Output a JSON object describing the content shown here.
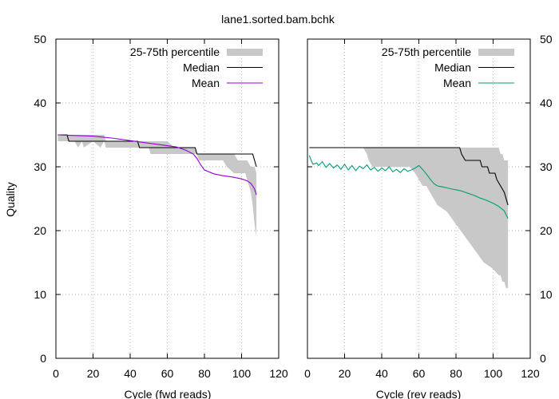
{
  "chart_data": [
    {
      "type": "line",
      "title": "lane1.sorted.bam.bchk",
      "xlabel": "Cycle (fwd reads)",
      "ylabel": "Quality",
      "xlim": [
        0,
        120
      ],
      "ylim": [
        0,
        50
      ],
      "xticks": [
        0,
        20,
        40,
        60,
        80,
        100,
        120
      ],
      "yticks": [
        0,
        10,
        20,
        30,
        40,
        50
      ],
      "grid": true,
      "legend_position": "top-right",
      "series": [
        {
          "name": "25-75th percentile",
          "kind": "band",
          "color": "#c8c8c8",
          "points": [
            [
              1,
              34,
              35
            ],
            [
              5,
              34,
              35
            ],
            [
              10,
              34,
              35
            ],
            [
              12,
              33,
              35
            ],
            [
              14,
              34,
              35
            ],
            [
              15,
              33,
              35
            ],
            [
              20,
              34,
              35
            ],
            [
              24,
              33,
              35
            ],
            [
              26,
              34,
              35
            ],
            [
              27,
              33,
              34
            ],
            [
              30,
              33,
              34
            ],
            [
              40,
              33,
              34
            ],
            [
              45,
              33,
              34
            ],
            [
              50,
              33,
              34
            ],
            [
              51,
              32,
              34
            ],
            [
              60,
              32,
              34
            ],
            [
              64,
              32,
              33
            ],
            [
              70,
              32,
              33
            ],
            [
              75,
              32,
              33
            ],
            [
              76,
              32,
              32
            ],
            [
              77,
              31,
              32
            ],
            [
              80,
              31,
              32
            ],
            [
              85,
              31,
              32
            ],
            [
              90,
              31,
              32
            ],
            [
              92,
              30,
              32
            ],
            [
              96,
              29,
              32
            ],
            [
              98,
              29,
              31
            ],
            [
              100,
              29,
              31
            ],
            [
              102,
              29,
              31
            ],
            [
              103,
              28,
              31
            ],
            [
              105,
              26,
              30
            ],
            [
              106,
              24,
              30
            ],
            [
              107,
              21,
              30
            ],
            [
              108,
              19,
              29
            ]
          ]
        },
        {
          "name": "Median",
          "color": "#000000",
          "points": [
            [
              1,
              35
            ],
            [
              6,
              35
            ],
            [
              7,
              34
            ],
            [
              44,
              34
            ],
            [
              45,
              33
            ],
            [
              75,
              33
            ],
            [
              76,
              32
            ],
            [
              106,
              32
            ],
            [
              107,
              31
            ],
            [
              108,
              30
            ]
          ]
        },
        {
          "name": "Mean",
          "color": "#9400d3",
          "points": [
            [
              1,
              35.0
            ],
            [
              10,
              34.9
            ],
            [
              20,
              34.8
            ],
            [
              30,
              34.5
            ],
            [
              40,
              34.1
            ],
            [
              50,
              33.7
            ],
            [
              60,
              33.3
            ],
            [
              65,
              33.1
            ],
            [
              70,
              32.6
            ],
            [
              74,
              32.0
            ],
            [
              76,
              31.3
            ],
            [
              78,
              30.3
            ],
            [
              80,
              29.5
            ],
            [
              85,
              28.9
            ],
            [
              90,
              28.6
            ],
            [
              95,
              28.4
            ],
            [
              100,
              28.1
            ],
            [
              103,
              27.8
            ],
            [
              105,
              27.4
            ],
            [
              106,
              27.0
            ],
            [
              107,
              26.5
            ],
            [
              108,
              25.6
            ]
          ]
        }
      ]
    },
    {
      "type": "line",
      "title": "",
      "xlabel": "Cycle (rev reads)",
      "ylabel": "",
      "xlim": [
        0,
        120
      ],
      "ylim": [
        0,
        50
      ],
      "xticks": [
        0,
        20,
        40,
        60,
        80,
        100,
        120
      ],
      "yticks": [
        0,
        10,
        20,
        30,
        40,
        50
      ],
      "grid": true,
      "legend_position": "top-right",
      "series": [
        {
          "name": "25-75th percentile",
          "kind": "band",
          "color": "#c8c8c8",
          "points": [
            [
              1,
              33,
              33
            ],
            [
              30,
              33,
              33
            ],
            [
              32,
              32,
              33
            ],
            [
              33,
              31,
              33
            ],
            [
              35,
              30,
              33
            ],
            [
              40,
              30,
              33
            ],
            [
              45,
              30,
              33
            ],
            [
              50,
              30,
              33
            ],
            [
              55,
              30,
              33
            ],
            [
              58,
              29,
              33
            ],
            [
              60,
              28,
              33
            ],
            [
              62,
              27,
              33
            ],
            [
              64,
              27,
              33
            ],
            [
              66,
              26,
              33
            ],
            [
              68,
              25,
              33
            ],
            [
              70,
              24,
              33
            ],
            [
              75,
              23,
              33
            ],
            [
              80,
              21,
              33
            ],
            [
              85,
              19,
              33
            ],
            [
              90,
              17,
              33
            ],
            [
              95,
              15,
              33
            ],
            [
              100,
              14,
              33
            ],
            [
              103,
              13,
              33
            ],
            [
              104,
              13,
              32
            ],
            [
              105,
              12,
              32
            ],
            [
              106,
              12,
              31
            ],
            [
              107,
              11,
              31
            ],
            [
              108,
              11,
              31
            ]
          ]
        },
        {
          "name": "Median",
          "color": "#000000",
          "points": [
            [
              1,
              33
            ],
            [
              82,
              33
            ],
            [
              83,
              32
            ],
            [
              85,
              31
            ],
            [
              93,
              31
            ],
            [
              94,
              30
            ],
            [
              97,
              30
            ],
            [
              98,
              29
            ],
            [
              101,
              29
            ],
            [
              102,
              28
            ],
            [
              104,
              27
            ],
            [
              106,
              26
            ],
            [
              107,
              25
            ],
            [
              108,
              24
            ]
          ]
        },
        {
          "name": "Mean",
          "color": "#009e73",
          "points": [
            [
              1,
              31.8
            ],
            [
              2,
              31.0
            ],
            [
              3,
              30.4
            ],
            [
              5,
              30.6
            ],
            [
              6,
              30.2
            ],
            [
              8,
              30.8
            ],
            [
              10,
              29.9
            ],
            [
              12,
              30.5
            ],
            [
              14,
              29.8
            ],
            [
              16,
              30.3
            ],
            [
              18,
              29.6
            ],
            [
              20,
              30.4
            ],
            [
              22,
              29.5
            ],
            [
              24,
              30.2
            ],
            [
              26,
              29.4
            ],
            [
              28,
              30.1
            ],
            [
              30,
              29.7
            ],
            [
              32,
              30.3
            ],
            [
              34,
              29.5
            ],
            [
              36,
              29.9
            ],
            [
              38,
              29.3
            ],
            [
              40,
              29.8
            ],
            [
              42,
              29.4
            ],
            [
              44,
              30.0
            ],
            [
              46,
              29.2
            ],
            [
              48,
              29.6
            ],
            [
              50,
              29.1
            ],
            [
              52,
              29.7
            ],
            [
              54,
              29.3
            ],
            [
              56,
              29.5
            ],
            [
              58,
              29.8
            ],
            [
              60,
              30.2
            ],
            [
              62,
              29.6
            ],
            [
              64,
              28.9
            ],
            [
              66,
              28.1
            ],
            [
              68,
              27.4
            ],
            [
              70,
              27.0
            ],
            [
              72,
              26.9
            ],
            [
              75,
              26.7
            ],
            [
              78,
              26.5
            ],
            [
              80,
              26.4
            ],
            [
              83,
              26.2
            ],
            [
              86,
              25.9
            ],
            [
              90,
              25.5
            ],
            [
              93,
              25.1
            ],
            [
              96,
              24.8
            ],
            [
              100,
              24.3
            ],
            [
              103,
              23.8
            ],
            [
              106,
              23.1
            ],
            [
              108,
              21.9
            ]
          ]
        }
      ]
    }
  ]
}
